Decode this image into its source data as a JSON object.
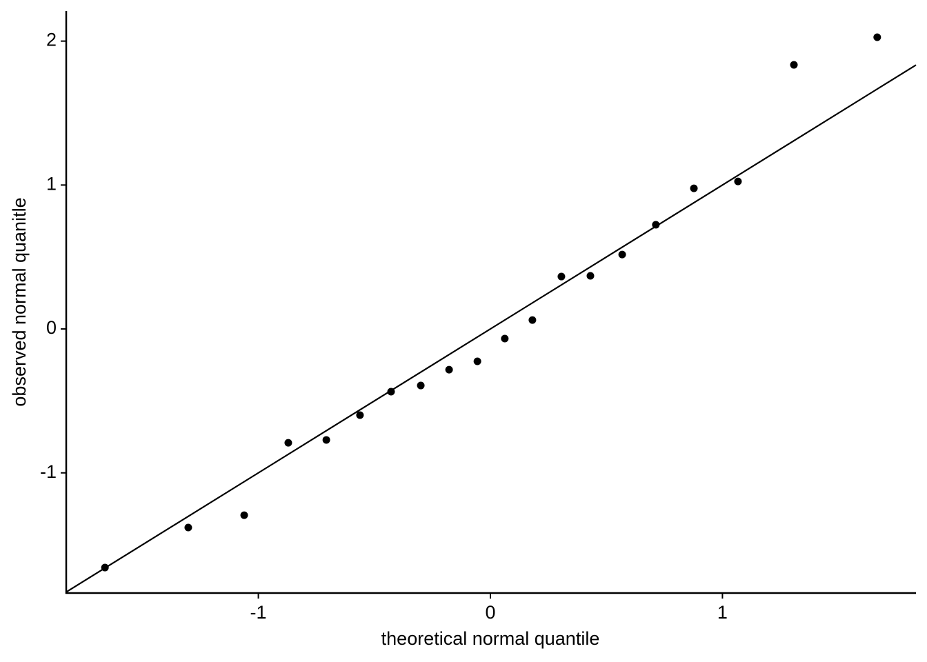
{
  "chart_data": {
    "type": "scatter",
    "x_label": "theoretical normal quantile",
    "y_label": "observed normal quanitle",
    "x": [
      -1.661,
      -1.302,
      -1.061,
      -0.871,
      -0.707,
      -0.562,
      -0.428,
      -0.3,
      -0.178,
      -0.056,
      0.062,
      0.181,
      0.306,
      0.431,
      0.568,
      0.713,
      0.877,
      1.067,
      1.308,
      1.667
    ],
    "values": [
      -1.658,
      -1.38,
      -1.294,
      -0.791,
      -0.771,
      -0.599,
      -0.436,
      -0.393,
      -0.283,
      -0.225,
      -0.067,
      0.062,
      0.364,
      0.369,
      0.517,
      0.724,
      0.977,
      1.025,
      1.835,
      2.027
    ],
    "color": "#000000",
    "reference_line": {
      "intercept": 0,
      "slope": 1
    },
    "xlim": [
      -1.828,
      1.834
    ],
    "ylim": [
      -1.835,
      2.209
    ],
    "xticks": [
      -1,
      0,
      1
    ],
    "yticks": [
      -1,
      0,
      1,
      2
    ],
    "grid": false
  }
}
